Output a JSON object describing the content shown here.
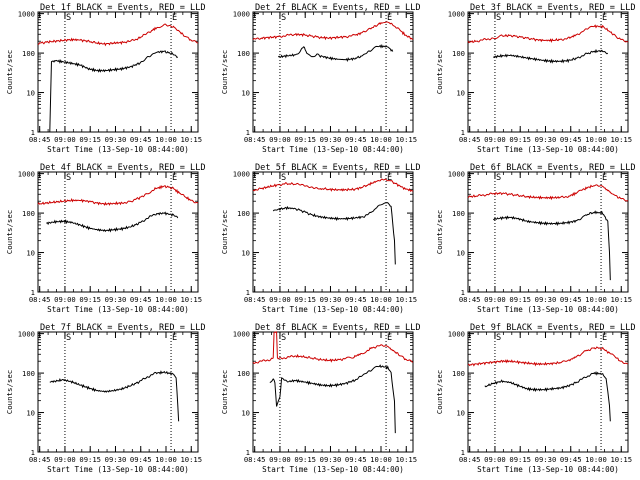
{
  "chart_data": [
    {
      "type": "line",
      "title": "Det 1f BLACK = Events, RED = LLD",
      "flags": [
        "S",
        "E"
      ],
      "xlabel": "Start Time (13-Sep-10 08:44:00)",
      "ylabel": "Counts/sec",
      "xticks": [
        "08:45",
        "09:00",
        "09:15",
        "09:30",
        "09:45",
        "10:00",
        "10:15"
      ],
      "yticks": [
        "1",
        "10",
        "100",
        "1000"
      ],
      "xlim_min": [
        0,
        95
      ],
      "ylim": [
        1,
        1100
      ],
      "vlines_min": [
        16,
        79
      ],
      "scale": "log",
      "grid": false,
      "series": [
        {
          "color": "#cc0000",
          "x": [
            0,
            5,
            10,
            15,
            20,
            25,
            30,
            35,
            40,
            45,
            50,
            55,
            60,
            65,
            70,
            75,
            80,
            85,
            90,
            95
          ],
          "values": [
            175,
            190,
            200,
            210,
            220,
            215,
            200,
            180,
            170,
            180,
            185,
            200,
            240,
            320,
            430,
            520,
            480,
            320,
            220,
            180
          ]
        },
        {
          "color": "#000000",
          "x": [
            5,
            7,
            8,
            10,
            15,
            20,
            25,
            30,
            35,
            40,
            45,
            50,
            55,
            60,
            65,
            70,
            75,
            80,
            83
          ],
          "values": [
            1,
            1,
            60,
            65,
            60,
            55,
            50,
            40,
            36,
            36,
            38,
            40,
            45,
            55,
            80,
            105,
            110,
            95,
            80
          ]
        }
      ]
    },
    {
      "type": "line",
      "title": "Det 2f BLACK = Events, RED = LLD",
      "flags": [
        "S",
        "E"
      ],
      "xlabel": "Start Time (13-Sep-10 08:44:00)",
      "ylabel": "Counts/sec",
      "xticks": [
        "08:45",
        "09:00",
        "09:15",
        "09:30",
        "09:45",
        "10:00",
        "10:15"
      ],
      "yticks": [
        "1",
        "10",
        "100",
        "1000"
      ],
      "xlim_min": [
        0,
        95
      ],
      "ylim": [
        1,
        1100
      ],
      "vlines_min": [
        16,
        79
      ],
      "scale": "log",
      "grid": false,
      "series": [
        {
          "color": "#cc0000",
          "x": [
            0,
            5,
            10,
            15,
            20,
            25,
            30,
            35,
            40,
            45,
            50,
            55,
            60,
            65,
            70,
            75,
            80,
            85,
            90,
            95
          ],
          "values": [
            220,
            240,
            250,
            260,
            280,
            300,
            290,
            270,
            250,
            240,
            250,
            260,
            280,
            330,
            420,
            560,
            620,
            450,
            300,
            220
          ]
        },
        {
          "color": "#000000",
          "x": [
            15,
            20,
            25,
            28,
            30,
            32,
            35,
            38,
            40,
            45,
            50,
            55,
            60,
            65,
            70,
            75,
            80,
            83
          ],
          "values": [
            80,
            85,
            90,
            110,
            150,
            100,
            80,
            95,
            85,
            75,
            70,
            68,
            72,
            85,
            120,
            150,
            145,
            110
          ]
        }
      ]
    },
    {
      "type": "line",
      "title": "Det 3f BLACK = Events, RED = LLD",
      "flags": [
        "S",
        "E"
      ],
      "xlabel": "Start Time (13-Sep-10 08:44:00)",
      "ylabel": "Counts/sec",
      "xticks": [
        "08:45",
        "09:00",
        "09:15",
        "09:30",
        "09:45",
        "10:00",
        "10:15"
      ],
      "yticks": [
        "1",
        "10",
        "100",
        "1000"
      ],
      "xlim_min": [
        0,
        95
      ],
      "ylim": [
        1,
        1100
      ],
      "vlines_min": [
        16,
        79
      ],
      "scale": "log",
      "grid": false,
      "series": [
        {
          "color": "#cc0000",
          "x": [
            0,
            5,
            10,
            15,
            20,
            25,
            30,
            35,
            40,
            45,
            50,
            55,
            60,
            65,
            70,
            75,
            80,
            85,
            90,
            95
          ],
          "values": [
            190,
            200,
            220,
            240,
            270,
            280,
            260,
            240,
            220,
            210,
            210,
            220,
            240,
            300,
            390,
            480,
            470,
            330,
            230,
            190
          ]
        },
        {
          "color": "#000000",
          "x": [
            15,
            20,
            25,
            30,
            35,
            40,
            45,
            50,
            55,
            60,
            65,
            70,
            75,
            80,
            83
          ],
          "values": [
            80,
            85,
            88,
            82,
            75,
            70,
            65,
            62,
            62,
            65,
            75,
            95,
            110,
            115,
            100
          ]
        }
      ]
    },
    {
      "type": "line",
      "title": "Det 4f BLACK = Events, RED = LLD",
      "flags": [
        "S",
        "E"
      ],
      "xlabel": "Start Time (13-Sep-10 08:44:00)",
      "ylabel": "Counts/sec",
      "xticks": [
        "08:45",
        "09:00",
        "09:15",
        "09:30",
        "09:45",
        "10:00",
        "10:15"
      ],
      "yticks": [
        "1",
        "10",
        "100",
        "1000"
      ],
      "xlim_min": [
        0,
        95
      ],
      "ylim": [
        1,
        1100
      ],
      "vlines_min": [
        16,
        79
      ],
      "scale": "log",
      "grid": false,
      "series": [
        {
          "color": "#cc0000",
          "x": [
            0,
            5,
            10,
            15,
            20,
            25,
            30,
            35,
            40,
            45,
            50,
            55,
            60,
            65,
            70,
            75,
            80,
            85,
            90,
            95
          ],
          "values": [
            170,
            180,
            190,
            200,
            210,
            210,
            200,
            180,
            170,
            175,
            180,
            200,
            240,
            320,
            420,
            480,
            430,
            300,
            220,
            180
          ]
        },
        {
          "color": "#000000",
          "x": [
            5,
            10,
            15,
            20,
            25,
            30,
            35,
            40,
            45,
            50,
            55,
            60,
            65,
            70,
            75,
            80,
            83
          ],
          "values": [
            55,
            60,
            62,
            58,
            50,
            42,
            38,
            36,
            38,
            40,
            45,
            55,
            75,
            95,
            100,
            90,
            75
          ]
        }
      ]
    },
    {
      "type": "line",
      "title": "Det 5f BLACK = Events, RED = LLD",
      "flags": [
        "S",
        "E"
      ],
      "xlabel": "Start Time (13-Sep-10 08:44:00)",
      "ylabel": "Counts/sec",
      "xticks": [
        "08:45",
        "09:00",
        "09:15",
        "09:30",
        "09:45",
        "10:00",
        "10:15"
      ],
      "yticks": [
        "1",
        "10",
        "100",
        "1000"
      ],
      "xlim_min": [
        0,
        95
      ],
      "ylim": [
        1,
        1100
      ],
      "vlines_min": [
        16,
        79
      ],
      "scale": "log",
      "grid": false,
      "series": [
        {
          "color": "#cc0000",
          "x": [
            0,
            5,
            10,
            15,
            20,
            25,
            30,
            35,
            40,
            45,
            50,
            55,
            60,
            65,
            70,
            75,
            80,
            85,
            90,
            95
          ],
          "values": [
            380,
            420,
            470,
            520,
            560,
            540,
            500,
            460,
            420,
            400,
            390,
            390,
            400,
            450,
            560,
            680,
            700,
            550,
            420,
            360
          ]
        },
        {
          "color": "#000000",
          "x": [
            12,
            15,
            20,
            25,
            30,
            35,
            40,
            45,
            50,
            55,
            60,
            65,
            70,
            75,
            80,
            82,
            84,
            84.5
          ],
          "values": [
            110,
            125,
            135,
            130,
            110,
            90,
            80,
            75,
            72,
            72,
            75,
            80,
            100,
            160,
            190,
            140,
            20,
            5
          ]
        }
      ]
    },
    {
      "type": "line",
      "title": "Det 6f BLACK = Events, RED = LLD",
      "flags": [
        "S",
        "E"
      ],
      "xlabel": "Start Time (13-Sep-10 08:44:00)",
      "ylabel": "Counts/sec",
      "xticks": [
        "08:45",
        "09:00",
        "09:15",
        "09:30",
        "09:45",
        "10:00",
        "10:15"
      ],
      "yticks": [
        "1",
        "10",
        "100",
        "1000"
      ],
      "xlim_min": [
        0,
        95
      ],
      "ylim": [
        1,
        1100
      ],
      "vlines_min": [
        16,
        79
      ],
      "scale": "log",
      "grid": false,
      "series": [
        {
          "color": "#cc0000",
          "x": [
            0,
            5,
            10,
            15,
            20,
            25,
            30,
            35,
            40,
            45,
            50,
            55,
            60,
            65,
            70,
            75,
            80,
            85,
            90,
            95
          ],
          "values": [
            260,
            270,
            290,
            310,
            320,
            300,
            280,
            260,
            250,
            245,
            245,
            250,
            270,
            330,
            430,
            500,
            460,
            330,
            240,
            200
          ]
        },
        {
          "color": "#000000",
          "x": [
            15,
            20,
            25,
            30,
            35,
            40,
            45,
            50,
            55,
            60,
            65,
            70,
            75,
            80,
            83,
            84,
            84.5
          ],
          "values": [
            70,
            75,
            78,
            72,
            62,
            58,
            55,
            54,
            55,
            58,
            65,
            90,
            105,
            100,
            60,
            10,
            2
          ]
        }
      ]
    },
    {
      "type": "line",
      "title": "Det 7f BLACK = Events, RED = LLD",
      "flags": [
        "S",
        "E"
      ],
      "xlabel": "Start Time (13-Sep-10 08:44:00)",
      "ylabel": "Counts/sec",
      "xticks": [
        "08:45",
        "09:00",
        "09:15",
        "09:30",
        "09:45",
        "10:00",
        "10:15"
      ],
      "yticks": [
        "1",
        "10",
        "100",
        "1000"
      ],
      "xlim_min": [
        0,
        95
      ],
      "ylim": [
        1,
        1100
      ],
      "vlines_min": [
        16,
        79
      ],
      "scale": "log",
      "grid": false,
      "series": [
        {
          "color": "#000000",
          "x": [
            7,
            10,
            15,
            20,
            25,
            30,
            35,
            40,
            45,
            50,
            55,
            60,
            65,
            70,
            75,
            80,
            82,
            83,
            83.5
          ],
          "values": [
            60,
            62,
            68,
            60,
            50,
            42,
            36,
            34,
            36,
            40,
            48,
            60,
            80,
            100,
            105,
            95,
            80,
            15,
            6
          ]
        }
      ]
    },
    {
      "type": "line",
      "title": "Det 8f BLACK = Events, RED = LLD",
      "flags": [
        "S",
        "E"
      ],
      "xlabel": "Start Time (13-Sep-10 08:44:00)",
      "ylabel": "Counts/sec",
      "xticks": [
        "08:45",
        "09:00",
        "09:15",
        "09:30",
        "09:45",
        "10:00",
        "10:15"
      ],
      "yticks": [
        "1",
        "10",
        "100",
        "1000"
      ],
      "xlim_min": [
        0,
        95
      ],
      "ylim": [
        1,
        1100
      ],
      "vlines_min": [
        16,
        79
      ],
      "scale": "log",
      "grid": false,
      "series": [
        {
          "color": "#cc0000",
          "x": [
            0,
            5,
            10,
            12,
            12.5,
            14,
            14.5,
            15,
            20,
            25,
            30,
            35,
            40,
            45,
            50,
            55,
            60,
            65,
            70,
            75,
            80,
            85,
            90,
            95
          ],
          "values": [
            180,
            200,
            220,
            240,
            1100,
            1100,
            250,
            230,
            250,
            270,
            260,
            240,
            220,
            210,
            215,
            230,
            260,
            320,
            420,
            500,
            460,
            330,
            230,
            190
          ]
        },
        {
          "color": "#000000",
          "x": [
            10,
            12,
            13,
            14,
            16,
            17,
            18,
            20,
            25,
            30,
            35,
            40,
            45,
            50,
            55,
            60,
            65,
            70,
            75,
            80,
            82,
            84,
            84.5
          ],
          "values": [
            55,
            70,
            60,
            15,
            25,
            80,
            70,
            60,
            65,
            60,
            55,
            50,
            48,
            50,
            55,
            65,
            85,
            120,
            150,
            140,
            100,
            20,
            3
          ]
        }
      ]
    },
    {
      "type": "line",
      "title": "Det 9f BLACK = Events, RED = LLD",
      "flags": [
        "S",
        "E"
      ],
      "xlabel": "Start Time (13-Sep-10 08:44:00)",
      "ylabel": "Counts/sec",
      "xticks": [
        "08:45",
        "09:00",
        "09:15",
        "09:30",
        "09:45",
        "10:00",
        "10:15"
      ],
      "yticks": [
        "1",
        "10",
        "100",
        "1000"
      ],
      "xlim_min": [
        0,
        95
      ],
      "ylim": [
        1,
        1100
      ],
      "vlines_min": [
        16,
        79
      ],
      "scale": "log",
      "grid": false,
      "series": [
        {
          "color": "#cc0000",
          "x": [
            0,
            5,
            10,
            15,
            20,
            25,
            30,
            35,
            40,
            45,
            50,
            55,
            60,
            65,
            70,
            75,
            80,
            85,
            90,
            95
          ],
          "values": [
            160,
            170,
            180,
            190,
            200,
            200,
            190,
            180,
            170,
            170,
            175,
            185,
            210,
            270,
            360,
            440,
            420,
            300,
            210,
            170
          ]
        },
        {
          "color": "#000000",
          "x": [
            10,
            15,
            20,
            25,
            30,
            35,
            40,
            45,
            50,
            55,
            60,
            65,
            70,
            75,
            80,
            82,
            84,
            84.5
          ],
          "values": [
            45,
            55,
            62,
            58,
            48,
            40,
            38,
            38,
            40,
            42,
            48,
            60,
            80,
            100,
            95,
            70,
            15,
            6
          ]
        }
      ]
    }
  ]
}
